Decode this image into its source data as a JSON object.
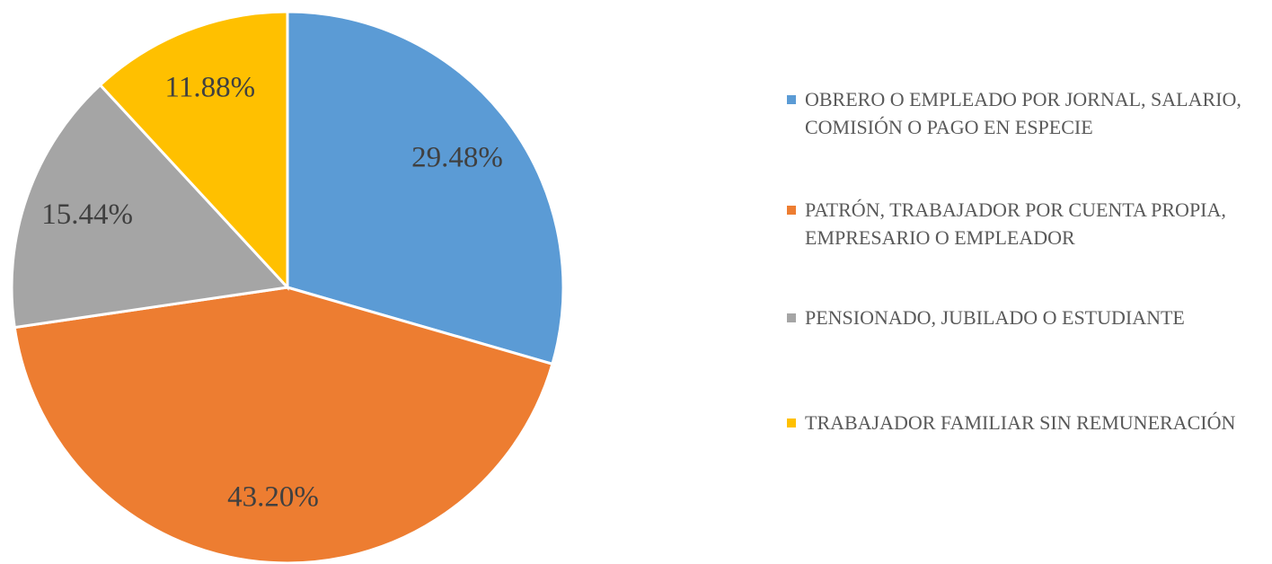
{
  "chart_data": {
    "type": "pie",
    "categories": [
      "OBRERO O EMPLEADO POR JORNAL, SALARIO, COMISIÓN O PAGO EN ESPECIE",
      "PATRÓN, TRABAJADOR POR CUENTA PROPIA, EMPRESARIO O EMPLEADOR",
      "PENSIONADO, JUBILADO O ESTUDIANTE",
      "TRABAJADOR FAMILIAR SIN REMUNERACIÓN"
    ],
    "values": [
      29.48,
      43.2,
      15.44,
      11.88
    ],
    "value_labels": [
      "29.48%",
      "43.20%",
      "15.44%",
      "11.88%"
    ],
    "colors": [
      "#5b9bd5",
      "#ed7d31",
      "#a5a5a5",
      "#ffc000"
    ],
    "legend": "right"
  }
}
